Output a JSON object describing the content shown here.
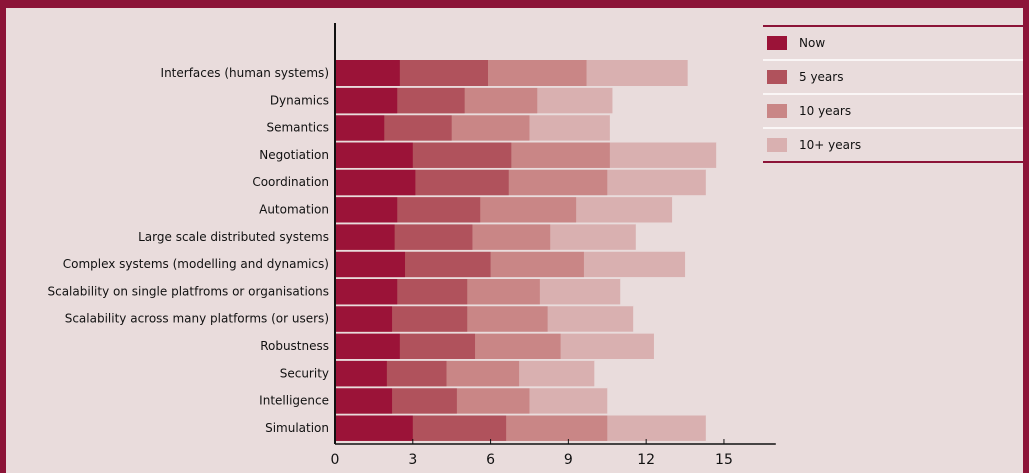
{
  "chart_data": {
    "type": "bar",
    "stacked": false,
    "orientation": "horizontal",
    "title": "",
    "xlabel": "",
    "ylabel": "",
    "xlim": [
      0,
      17
    ],
    "xticks": [
      0,
      3,
      6,
      9,
      12,
      15
    ],
    "grid": false,
    "legend_position": "top-right",
    "categories": [
      "Interfaces (human systems)",
      "Dynamics",
      "Semantics",
      "Negotiation",
      "Coordination",
      "Automation",
      "Large scale distributed systems",
      "Complex systems (modelling and dynamics)",
      "Scalability on single platfroms or organisations",
      "Scalability across many platforms (or users)",
      "Robustness",
      "Security",
      "Intelligence",
      "Simulation"
    ],
    "series": [
      {
        "name": "Now",
        "color": "#9b1338",
        "values": [
          2.5,
          2.4,
          1.9,
          3.0,
          3.1,
          2.4,
          2.3,
          2.7,
          2.4,
          2.2,
          2.5,
          2.0,
          2.2,
          3.0
        ]
      },
      {
        "name": "5  years",
        "color": "#b0525c",
        "values": [
          5.9,
          5.0,
          4.5,
          6.8,
          6.7,
          5.6,
          5.3,
          6.0,
          5.1,
          5.1,
          5.4,
          4.3,
          4.7,
          6.6
        ]
      },
      {
        "name": "10 years",
        "color": "#c98686",
        "values": [
          9.7,
          7.8,
          7.5,
          10.6,
          10.5,
          9.3,
          8.3,
          9.6,
          7.9,
          8.2,
          8.7,
          7.1,
          7.5,
          10.5
        ]
      },
      {
        "name": "10+ years",
        "color": "#d9b0b0",
        "values": [
          13.6,
          10.7,
          10.6,
          14.7,
          14.3,
          13.0,
          11.6,
          13.5,
          11.0,
          11.5,
          12.3,
          10.0,
          10.5,
          14.3
        ]
      }
    ]
  }
}
